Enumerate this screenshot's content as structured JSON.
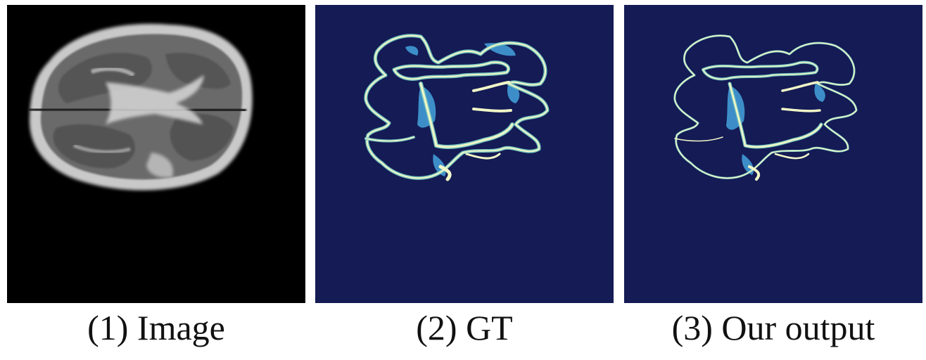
{
  "panels": [
    {
      "caption": "(1) Image"
    },
    {
      "caption": "(2) GT"
    },
    {
      "caption": "(3) Our output"
    }
  ],
  "colors": {
    "mri_background": "#000000",
    "segmentation_background": "#141b55",
    "label_light": "#f1f7c7",
    "label_mid": "#77c4c0",
    "label_dark": "#3d8ec8",
    "caption_text": "#111111"
  }
}
